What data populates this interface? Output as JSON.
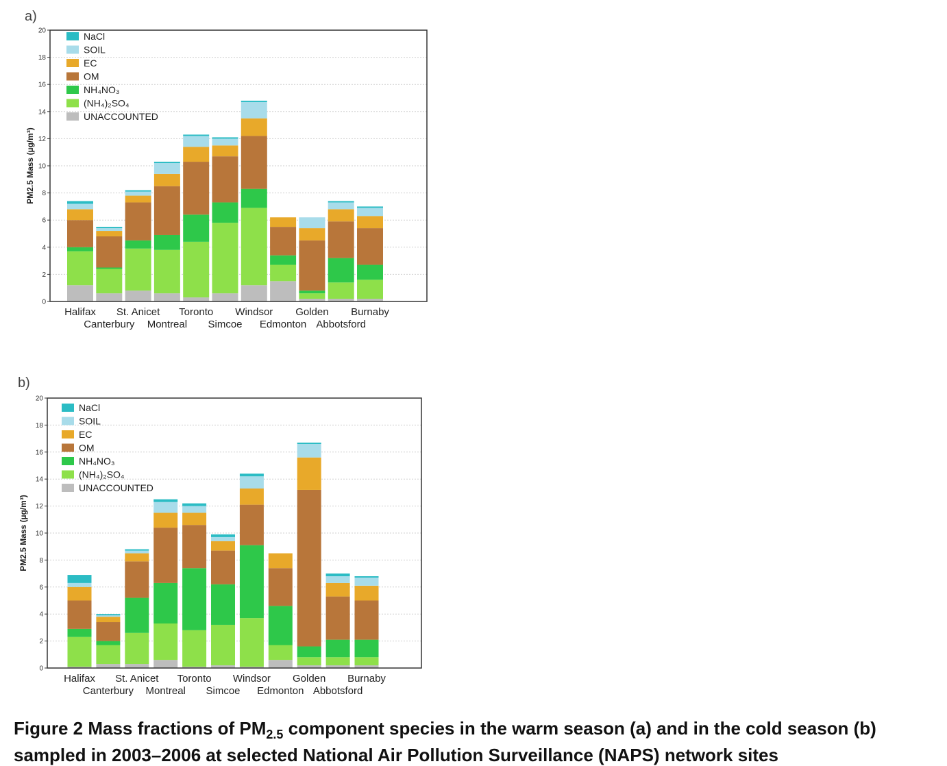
{
  "caption": {
    "prefix": "Figure 2 Mass fractions of PM",
    "sub": "2.5",
    "suffix": " component species in the warm season (a) and in the cold season (b) sampled in 2003–2006 at selected National Air Pollution Surveillance (NAPS) network sites"
  },
  "colors": {
    "NaCl": "#2bbcc4",
    "SOIL": "#a8dcea",
    "EC": "#e8a92a",
    "OM": "#b8763a",
    "NH4NO3": "#2ec84a",
    "(NH4)2SO4": "#8ee04a",
    "UNACCOUNTED": "#bdbdbd"
  },
  "chart_data": [
    {
      "type": "bar",
      "stacked": true,
      "panel_label": "a)",
      "ylabel": "PM2.5 Mass (µg/m³)",
      "ylim": [
        0,
        20
      ],
      "yticks": [
        0,
        2,
        4,
        6,
        8,
        10,
        12,
        14,
        16,
        18,
        20
      ],
      "grid": true,
      "legend_position": "top-left",
      "categories": [
        "Halifax",
        "Canterbury",
        "St. Anicet",
        "Montreal",
        "Toronto",
        "Simcoe",
        "Windsor",
        "Edmonton",
        "Golden",
        "Abbotsford",
        "Burnaby"
      ],
      "series": [
        {
          "name": "UNACCOUNTED",
          "label": "UNACCOUNTED",
          "values": [
            1.2,
            0.6,
            0.8,
            0.6,
            0.3,
            0.6,
            1.2,
            1.5,
            0.2,
            0.2,
            0.2
          ]
        },
        {
          "name": "(NH4)2SO4",
          "label": "(NH₄)₂SO₄",
          "values": [
            2.5,
            1.8,
            3.1,
            3.2,
            4.1,
            5.2,
            5.7,
            1.2,
            0.4,
            1.2,
            1.4
          ]
        },
        {
          "name": "NH4NO3",
          "label": "NH₄NO₃",
          "values": [
            0.3,
            0.1,
            0.6,
            1.1,
            2.0,
            1.5,
            1.4,
            0.7,
            0.2,
            1.8,
            1.1
          ]
        },
        {
          "name": "OM",
          "label": "OM",
          "values": [
            2.0,
            2.3,
            2.8,
            3.6,
            3.9,
            3.4,
            3.9,
            2.1,
            3.7,
            2.7,
            2.7
          ]
        },
        {
          "name": "EC",
          "label": "EC",
          "values": [
            0.8,
            0.4,
            0.5,
            0.9,
            1.1,
            0.8,
            1.3,
            0.7,
            0.9,
            0.9,
            0.9
          ]
        },
        {
          "name": "SOIL",
          "label": "SOIL",
          "values": [
            0.4,
            0.2,
            0.3,
            0.8,
            0.8,
            0.5,
            1.2,
            0.0,
            0.8,
            0.5,
            0.6
          ]
        },
        {
          "name": "NaCl",
          "label": "NaCl",
          "values": [
            0.2,
            0.1,
            0.1,
            0.1,
            0.1,
            0.1,
            0.1,
            0.0,
            0.0,
            0.1,
            0.1
          ]
        }
      ]
    },
    {
      "type": "bar",
      "stacked": true,
      "panel_label": "b)",
      "ylabel": "PM2.5 Mass (µg/m³)",
      "ylim": [
        0,
        20
      ],
      "yticks": [
        0,
        2,
        4,
        6,
        8,
        10,
        12,
        14,
        16,
        18,
        20
      ],
      "grid": true,
      "legend_position": "top-left",
      "categories": [
        "Halifax",
        "Canterbury",
        "St. Anicet",
        "Montreal",
        "Toronto",
        "Simcoe",
        "Windsor",
        "Edmonton",
        "Golden",
        "Abbotsford",
        "Burnaby"
      ],
      "series": [
        {
          "name": "UNACCOUNTED",
          "label": "UNACCOUNTED",
          "values": [
            0.1,
            0.3,
            0.3,
            0.6,
            0.1,
            0.2,
            0.1,
            0.6,
            0.2,
            0.2,
            0.2
          ]
        },
        {
          "name": "(NH4)2SO4",
          "label": "(NH₄)₂SO₄",
          "values": [
            2.2,
            1.4,
            2.3,
            2.7,
            2.7,
            3.0,
            3.6,
            1.1,
            0.6,
            0.6,
            0.6
          ]
        },
        {
          "name": "NH4NO3",
          "label": "NH₄NO₃",
          "values": [
            0.6,
            0.3,
            2.6,
            3.0,
            4.6,
            3.0,
            5.4,
            2.9,
            0.8,
            1.3,
            1.3
          ]
        },
        {
          "name": "OM",
          "label": "OM",
          "values": [
            2.1,
            1.4,
            2.7,
            4.1,
            3.2,
            2.5,
            3.0,
            2.8,
            11.6,
            3.2,
            2.9
          ]
        },
        {
          "name": "EC",
          "label": "EC",
          "values": [
            1.0,
            0.4,
            0.6,
            1.1,
            0.9,
            0.7,
            1.2,
            1.1,
            2.4,
            1.0,
            1.1
          ]
        },
        {
          "name": "SOIL",
          "label": "SOIL",
          "values": [
            0.3,
            0.1,
            0.2,
            0.8,
            0.5,
            0.3,
            0.9,
            0.0,
            1.0,
            0.5,
            0.6
          ]
        },
        {
          "name": "NaCl",
          "label": "NaCl",
          "values": [
            0.6,
            0.1,
            0.1,
            0.2,
            0.2,
            0.2,
            0.2,
            0.0,
            0.1,
            0.2,
            0.1
          ]
        }
      ]
    }
  ]
}
